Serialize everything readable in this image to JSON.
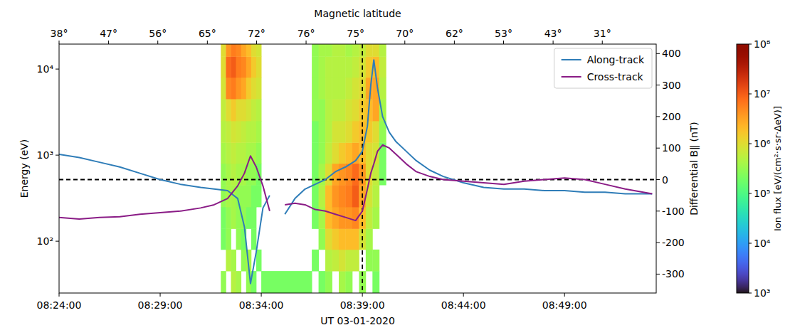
{
  "chart_data": {
    "type": "spectrogram",
    "x_label": "UT 03-01-2020",
    "y_label": "Energy (eV)",
    "y2_label": "Differential B∥ (nT)",
    "log": "y",
    "legend": "upper right",
    "xlim": [
      "08:24:00",
      "08:53:32"
    ],
    "xticks": [
      "08:24:00",
      "08:29:00",
      "08:34:00",
      "08:39:00",
      "08:44:00",
      "08:49:00"
    ],
    "ylim": [
      25,
      19500
    ],
    "yticks": [
      {
        "value": 100,
        "label": "10²"
      },
      {
        "value": 1000,
        "label": "10³"
      },
      {
        "value": 10000,
        "label": "10⁴"
      }
    ],
    "y2lim": [
      -360,
      430
    ],
    "y2ticks": [
      -300,
      -200,
      -100,
      0,
      100,
      200,
      300,
      400
    ],
    "top_axis": {
      "label": "Magnetic latitude",
      "ticks": [
        {
          "value": "08:24:00",
          "label": "38°"
        },
        {
          "value": "08:26:27",
          "label": "47°"
        },
        {
          "value": "08:28:53",
          "label": "56°"
        },
        {
          "value": "08:31:20",
          "label": "65°"
        },
        {
          "value": "08:33:46",
          "label": "72°"
        },
        {
          "value": "08:36:13",
          "label": "76°"
        },
        {
          "value": "08:38:40",
          "label": "75°"
        },
        {
          "value": "08:41:06",
          "label": "70°"
        },
        {
          "value": "08:43:33",
          "label": "62°"
        },
        {
          "value": "08:45:59",
          "label": "53°"
        },
        {
          "value": "08:48:26",
          "label": "43°"
        },
        {
          "value": "08:50:52",
          "label": "31°"
        }
      ]
    },
    "hlines": [
      {
        "value": 0,
        "axis": "y2",
        "line_style": "dashed"
      }
    ],
    "vlines": [
      {
        "value": "08:39:00",
        "line_style": "dashed"
      }
    ],
    "x": [
      "08:24:00",
      "08:25:00",
      "08:26:00",
      "08:27:00",
      "08:28:00",
      "08:29:00",
      "08:30:00",
      "08:31:00",
      "08:31:40",
      "08:32:20",
      "08:32:50",
      "08:33:10",
      "08:33:28",
      "08:33:45",
      "08:34:05",
      "08:34:25",
      "08:34:45",
      "08:35:10",
      "08:35:40",
      "08:36:10",
      "08:36:40",
      "08:37:10",
      "08:37:40",
      "08:38:10",
      "08:38:40",
      "08:39:00",
      "08:39:15",
      "08:39:25",
      "08:39:34",
      "08:39:45",
      "08:40:00",
      "08:40:20",
      "08:40:40",
      "08:41:10",
      "08:41:40",
      "08:42:20",
      "08:43:00",
      "08:44:00",
      "08:45:00",
      "08:46:00",
      "08:47:00",
      "08:48:00",
      "08:49:00",
      "08:50:00",
      "08:51:00",
      "08:52:00",
      "08:53:20"
    ],
    "series": [
      {
        "name": "Along-track",
        "color": "#2f7db8",
        "type": "line",
        "axis": "y2",
        "values": [
          80,
          70,
          55,
          40,
          20,
          0,
          -15,
          -25,
          -30,
          -35,
          -60,
          -150,
          -330,
          -230,
          -90,
          -50,
          null,
          -110,
          -60,
          -30,
          -15,
          0,
          25,
          40,
          60,
          90,
          170,
          300,
          380,
          290,
          200,
          150,
          120,
          90,
          60,
          30,
          10,
          -10,
          -25,
          -30,
          -30,
          -35,
          -35,
          -40,
          -40,
          -45,
          -45
        ]
      },
      {
        "name": "Cross-track",
        "color": "#8a1c86",
        "type": "line",
        "axis": "y2",
        "values": [
          -120,
          -125,
          -120,
          -118,
          -110,
          -105,
          -100,
          -90,
          -80,
          -60,
          -20,
          20,
          75,
          40,
          -20,
          -100,
          null,
          -80,
          -75,
          -80,
          -95,
          -100,
          -110,
          -120,
          -130,
          -100,
          -30,
          20,
          50,
          90,
          110,
          100,
          80,
          50,
          25,
          10,
          0,
          -5,
          -10,
          -15,
          -5,
          0,
          5,
          0,
          -15,
          -30,
          -45
        ]
      }
    ],
    "heatmap": {
      "x_edges": [
        "08:32:00",
        "08:32:15",
        "08:32:30",
        "08:32:45",
        "08:33:00",
        "08:33:15",
        "08:33:30",
        "08:33:45",
        "08:34:00",
        "08:36:30",
        "08:36:50",
        "08:37:10",
        "08:37:30",
        "08:37:50",
        "08:38:10",
        "08:38:30",
        "08:38:50",
        "08:39:10",
        "08:39:30",
        "08:39:50",
        "08:40:10"
      ],
      "y_edges": [
        25,
        45,
        80,
        140,
        250,
        450,
        800,
        1400,
        2500,
        4500,
        8000,
        14000,
        19500
      ],
      "cells": [
        [
          300000.0,
          null,
          500000.0,
          400000.0,
          null,
          300000.0,
          200000.0,
          null,
          200000.0,
          null,
          200000.0,
          300000.0,
          null,
          400000.0,
          300000.0,
          null,
          300000.0,
          null,
          200000.0,
          null
        ],
        [
          null,
          500000.0,
          400000.0,
          null,
          300000.0,
          400000.0,
          null,
          200000.0,
          null,
          200000.0,
          null,
          500000.0,
          600000.0,
          800000.0,
          600000.0,
          600000.0,
          null,
          300000.0,
          300000.0,
          null
        ],
        [
          200000.0,
          300000.0,
          null,
          300000.0,
          200000.0,
          null,
          200000.0,
          null,
          null,
          null,
          300000.0,
          1000000.0,
          1500000.0,
          2000000.0,
          2000000.0,
          2000000.0,
          800000.0,
          400000.0,
          null,
          null
        ],
        [
          200000.0,
          300000.0,
          400000.0,
          300000.0,
          300000.0,
          200000.0,
          200000.0,
          null,
          null,
          200000.0,
          400000.0,
          2000000.0,
          3000000.0,
          4000000.0,
          4000000.0,
          5000000.0,
          2000000.0,
          600000.0,
          400000.0,
          null
        ],
        [
          300000.0,
          400000.0,
          400000.0,
          300000.0,
          300000.0,
          300000.0,
          200000.0,
          200000.0,
          null,
          200000.0,
          500000.0,
          2000000.0,
          4000000.0,
          5000000.0,
          6000000.0,
          10000000.0,
          3000000.0,
          800000.0,
          500000.0,
          null
        ],
        [
          300000.0,
          400000.0,
          500000.0,
          400000.0,
          400000.0,
          300000.0,
          300000.0,
          200000.0,
          null,
          200000.0,
          400000.0,
          1000000.0,
          3000000.0,
          4000000.0,
          5000000.0,
          8000000.0,
          4000000.0,
          1000000.0,
          600000.0,
          200000.0
        ],
        [
          400000.0,
          500000.0,
          600000.0,
          500000.0,
          500000.0,
          400000.0,
          400000.0,
          300000.0,
          null,
          200000.0,
          300000.0,
          600000.0,
          1000000.0,
          1500000.0,
          2000000.0,
          3000000.0,
          2000000.0,
          1000000.0,
          800000.0,
          200000.0
        ],
        [
          500000.0,
          600000.0,
          800000.0,
          700000.0,
          600000.0,
          500000.0,
          500000.0,
          400000.0,
          null,
          200000.0,
          300000.0,
          500000.0,
          800000.0,
          800000.0,
          1000000.0,
          1500000.0,
          2000000.0,
          1500000.0,
          1000000.0,
          300000.0
        ],
        [
          600000.0,
          1000000.0,
          1500000.0,
          1000000.0,
          1000000.0,
          800000.0,
          600000.0,
          500000.0,
          null,
          300000.0,
          300000.0,
          500000.0,
          600000.0,
          600000.0,
          800000.0,
          1000000.0,
          1500000.0,
          2000000.0,
          3000000.0,
          400000.0
        ],
        [
          800000.0,
          5000000.0,
          6000000.0,
          4000000.0,
          3000000.0,
          1500000.0,
          1000000.0,
          800000.0,
          null,
          300000.0,
          400000.0,
          500000.0,
          500000.0,
          500000.0,
          600000.0,
          800000.0,
          1000000.0,
          3000000.0,
          3000000.0,
          500000.0
        ],
        [
          1000000.0,
          8000000.0,
          10000000.0,
          6000000.0,
          5000000.0,
          3000000.0,
          1500000.0,
          1000000.0,
          null,
          300000.0,
          400000.0,
          500000.0,
          500000.0,
          500000.0,
          500000.0,
          600000.0,
          800000.0,
          1500000.0,
          2000000.0,
          600000.0
        ],
        [
          1000000.0,
          4000000.0,
          6000000.0,
          5000000.0,
          3000000.0,
          2000000.0,
          1000000.0,
          800000.0,
          null,
          300000.0,
          400000.0,
          400000.0,
          500000.0,
          500000.0,
          400000.0,
          500000.0,
          600000.0,
          1000000.0,
          1000000.0,
          500000.0
        ]
      ]
    },
    "colorbar": {
      "label": "Ion flux [eV/(cm²·s·sr·ΔeV)]",
      "log": true,
      "lim": [
        1000,
        100000000
      ],
      "ticks": [
        {
          "value": 1000,
          "label": "10³"
        },
        {
          "value": 10000,
          "label": "10⁴"
        },
        {
          "value": 100000,
          "label": "10⁵"
        },
        {
          "value": 1000000,
          "label": "10⁶"
        },
        {
          "value": 10000000,
          "label": "10⁷"
        },
        {
          "value": 100000000,
          "label": "10⁸"
        }
      ]
    }
  }
}
